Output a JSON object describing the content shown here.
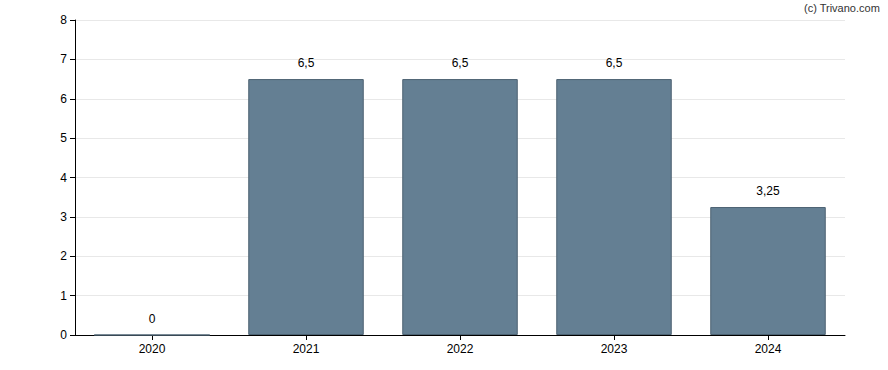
{
  "chart_data": {
    "type": "bar",
    "annotations": [
      "(c) Trivano.com"
    ],
    "categories": [
      "2020",
      "2021",
      "2022",
      "2023",
      "2024"
    ],
    "values": [
      0,
      6.5,
      6.5,
      6.5,
      3.25
    ],
    "value_labels": [
      "0",
      "6,5",
      "6,5",
      "6,5",
      "3,25"
    ],
    "color": "#647f93",
    "ylim": [
      0,
      8
    ],
    "yticks": [
      0,
      1,
      2,
      3,
      4,
      5,
      6,
      7,
      8
    ],
    "grid": true,
    "data_labels": true
  }
}
